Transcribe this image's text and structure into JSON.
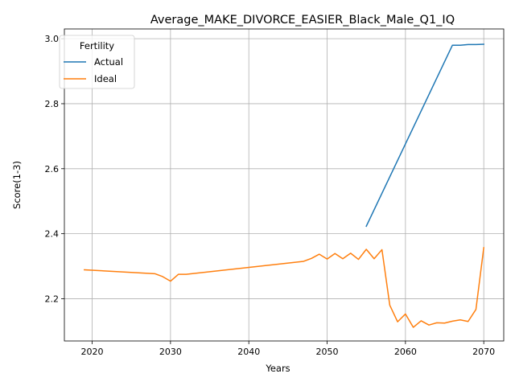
{
  "chart_data": {
    "type": "line",
    "title": "Average_MAKE_DIVORCE_EASIER_Black_Male_Q1_IQ",
    "xlabel": "Years",
    "ylabel": "Score(1-3)",
    "xlim": [
      2016.45,
      2072.55
    ],
    "ylim": [
      2.07,
      3.03
    ],
    "x_ticks": [
      2020,
      2030,
      2040,
      2050,
      2060,
      2070
    ],
    "y_ticks": [
      2.2,
      2.4,
      2.6,
      2.8,
      3.0
    ],
    "x_tick_labels": [
      "2020",
      "2030",
      "2040",
      "2050",
      "2060",
      "2070"
    ],
    "y_tick_labels": [
      "2.2",
      "2.4",
      "2.6",
      "2.8",
      "3.0"
    ],
    "grid": true,
    "legend": {
      "title": "Fertility",
      "position": "top-left"
    },
    "series": [
      {
        "name": "Actual",
        "color": "#1f77b4",
        "x": [
          2055,
          2066,
          2067,
          2068,
          2069,
          2070
        ],
        "y": [
          2.423,
          2.98,
          2.98,
          2.982,
          2.982,
          2.983
        ]
      },
      {
        "name": "Ideal",
        "color": "#ff7f0e",
        "x": [
          2019,
          2028,
          2029,
          2030,
          2031,
          2032,
          2047,
          2048,
          2049,
          2050,
          2051,
          2052,
          2053,
          2054,
          2055,
          2056,
          2057,
          2058,
          2059,
          2060,
          2061,
          2062,
          2063,
          2064,
          2065,
          2066,
          2067,
          2068,
          2069,
          2070
        ],
        "y": [
          2.289,
          2.277,
          2.268,
          2.254,
          2.275,
          2.275,
          2.315,
          2.324,
          2.337,
          2.322,
          2.339,
          2.323,
          2.34,
          2.321,
          2.352,
          2.323,
          2.351,
          2.18,
          2.129,
          2.153,
          2.112,
          2.132,
          2.119,
          2.126,
          2.125,
          2.131,
          2.135,
          2.13,
          2.167,
          2.357
        ]
      }
    ]
  }
}
